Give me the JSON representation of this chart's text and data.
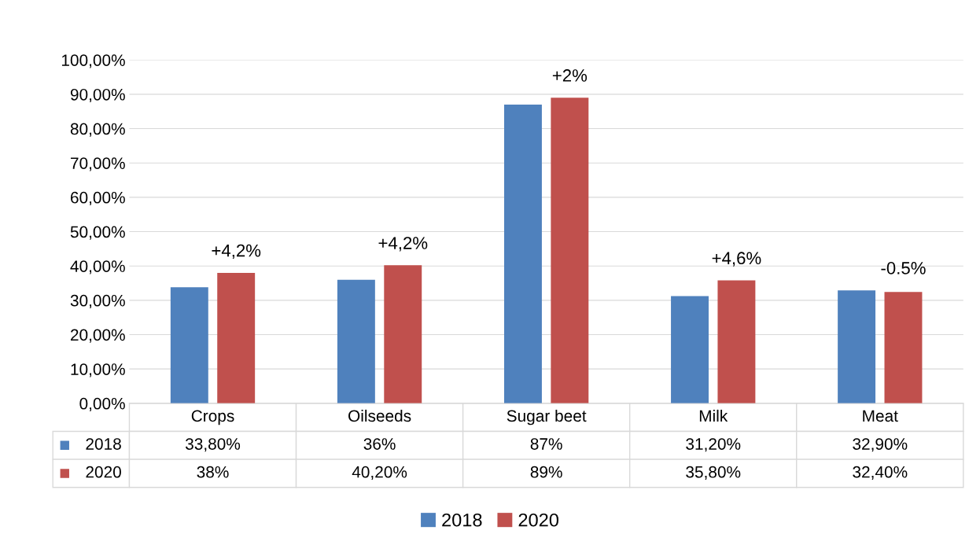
{
  "chart_data": {
    "type": "bar",
    "categories": [
      "Crops",
      "Oilseeds",
      "Sugar beet",
      "Milk",
      "Meat"
    ],
    "series": [
      {
        "name": "2018",
        "color": "#4f81bd",
        "values": [
          33.8,
          36,
          87,
          31.2,
          32.9
        ],
        "value_labels": [
          "33,80%",
          "36%",
          "87%",
          "31,20%",
          "32,90%"
        ]
      },
      {
        "name": "2020",
        "color": "#c0504d",
        "values": [
          38,
          40.2,
          89,
          35.8,
          32.4
        ],
        "value_labels": [
          "38%",
          "40,20%",
          "89%",
          "35,80%",
          "32,40%"
        ]
      }
    ],
    "ylim": [
      0,
      100
    ],
    "yticks": [
      {
        "value": 0,
        "label": "0,00%"
      },
      {
        "value": 10,
        "label": "10,00%"
      },
      {
        "value": 20,
        "label": "20,00%"
      },
      {
        "value": 30,
        "label": "30,00%"
      },
      {
        "value": 40,
        "label": "40,00%"
      },
      {
        "value": 50,
        "label": "50,00%"
      },
      {
        "value": 60,
        "label": "60,00%"
      },
      {
        "value": 70,
        "label": "70,00%"
      },
      {
        "value": 80,
        "label": "80,00%"
      },
      {
        "value": 90,
        "label": "90,00%"
      },
      {
        "value": 100,
        "label": "100,00%"
      }
    ],
    "grid": "y",
    "legend": "bottom",
    "annotations": [
      "+4,2%",
      "+4,2%",
      "+2%",
      "+4,6%",
      "-0.5%"
    ]
  }
}
